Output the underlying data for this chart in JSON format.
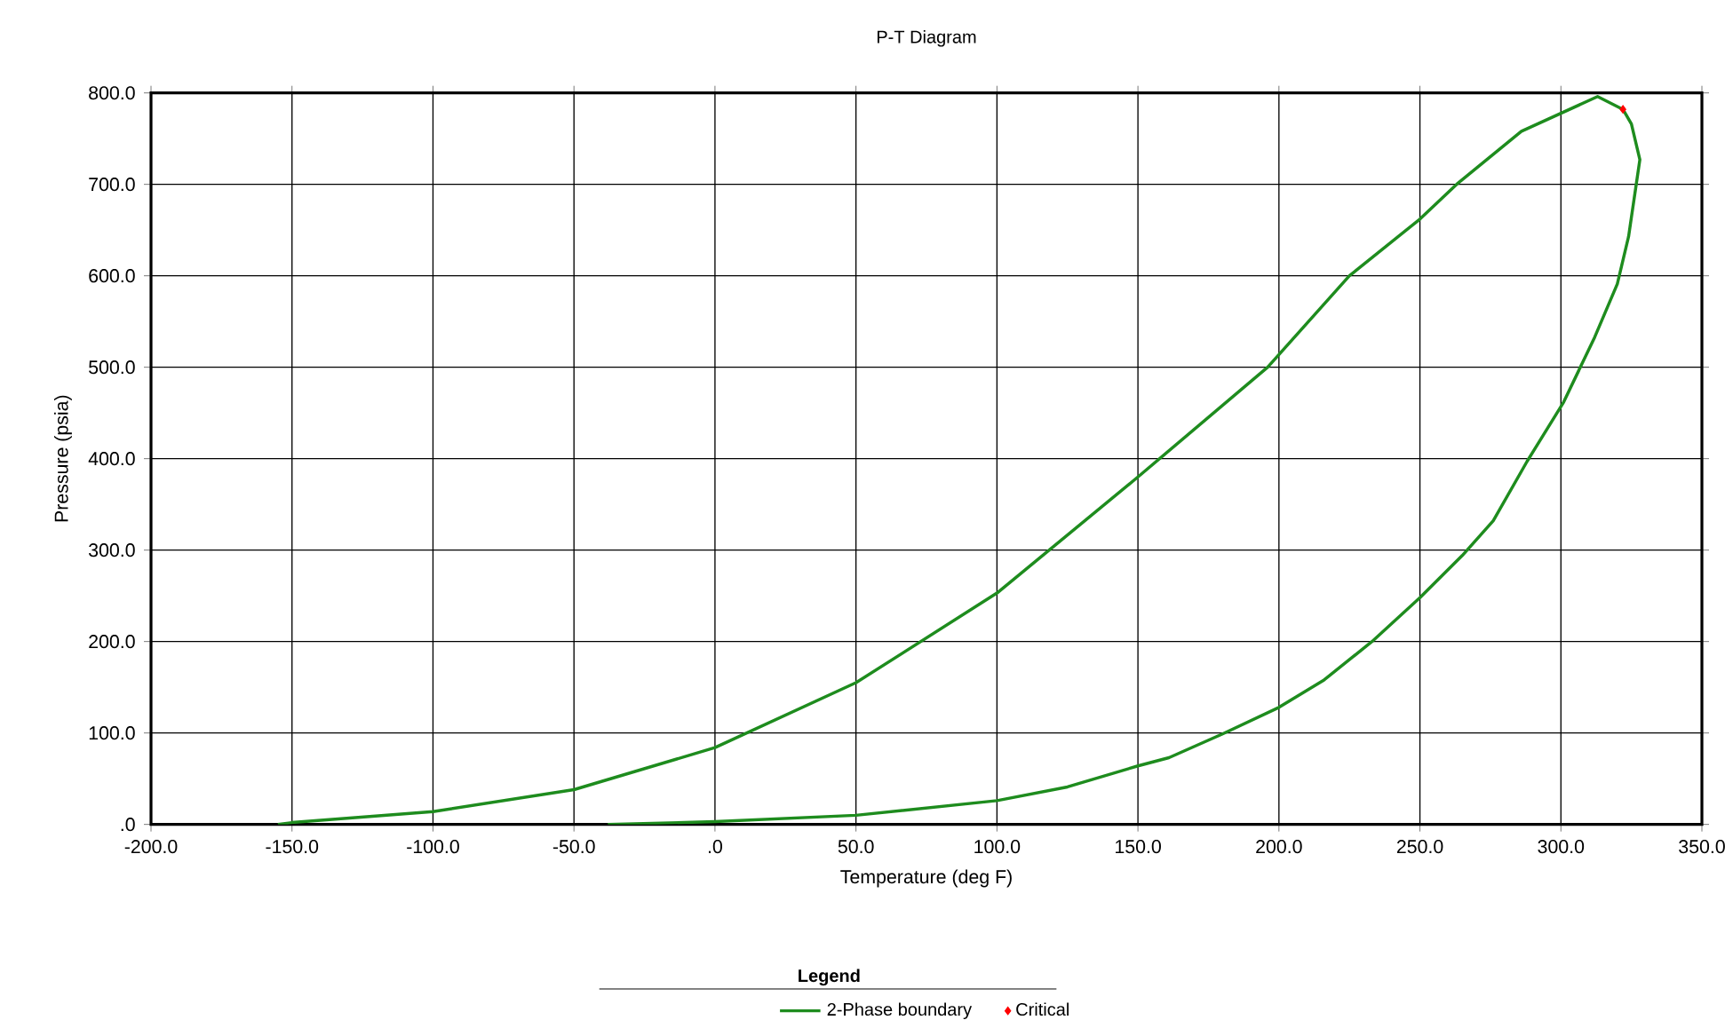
{
  "chart_data": {
    "type": "line",
    "title": "P-T Diagram",
    "xlabel": "Temperature (deg F)",
    "ylabel": "Pressure (psia)",
    "legend_title": "Legend",
    "xlim": [
      -200,
      350
    ],
    "ylim": [
      0,
      800
    ],
    "xticks": [
      {
        "value": -200,
        "label": "-200.0"
      },
      {
        "value": -150,
        "label": "-150.0"
      },
      {
        "value": -100,
        "label": "-100.0"
      },
      {
        "value": -50,
        "label": "-50.0"
      },
      {
        "value": 0,
        "label": ".0"
      },
      {
        "value": 50,
        "label": "50.0"
      },
      {
        "value": 100,
        "label": "100.0"
      },
      {
        "value": 150,
        "label": "150.0"
      },
      {
        "value": 200,
        "label": "200.0"
      },
      {
        "value": 250,
        "label": "250.0"
      },
      {
        "value": 300,
        "label": "300.0"
      },
      {
        "value": 350,
        "label": "350.0"
      }
    ],
    "yticks": [
      {
        "value": 0,
        "label": ".0"
      },
      {
        "value": 100,
        "label": "100.0"
      },
      {
        "value": 200,
        "label": "200.0"
      },
      {
        "value": 300,
        "label": "300.0"
      },
      {
        "value": 400,
        "label": "400.0"
      },
      {
        "value": 500,
        "label": "500.0"
      },
      {
        "value": 600,
        "label": "600.0"
      },
      {
        "value": 700,
        "label": "700.0"
      },
      {
        "value": 800,
        "label": "800.0"
      }
    ],
    "grid": true,
    "legend": "bottom",
    "series": [
      {
        "name": "2-Phase boundary",
        "color": "#1e8c1e",
        "line_style": "solid",
        "marker": "none",
        "x": [
          -155,
          -150,
          -100,
          -50,
          0,
          50,
          100,
          150,
          196,
          225,
          250,
          263,
          286,
          313,
          322,
          325,
          328,
          324,
          320,
          312,
          301,
          288,
          276,
          265,
          250,
          233,
          216,
          200,
          180,
          161,
          150,
          125,
          100,
          50,
          0,
          -38
        ],
        "values": [
          0,
          2,
          14,
          38,
          84,
          155,
          253,
          380,
          500,
          600,
          662,
          700,
          758,
          796,
          782,
          766,
          727,
          643,
          591,
          533,
          462,
          397,
          332,
          294,
          248,
          200,
          158,
          128,
          99,
          73,
          64,
          41,
          26,
          10,
          3,
          0
        ]
      },
      {
        "name": "Critical",
        "type": "scatter",
        "color": "#ff0000",
        "marker": "diamond",
        "x": [
          322
        ],
        "values": [
          782
        ]
      }
    ]
  }
}
